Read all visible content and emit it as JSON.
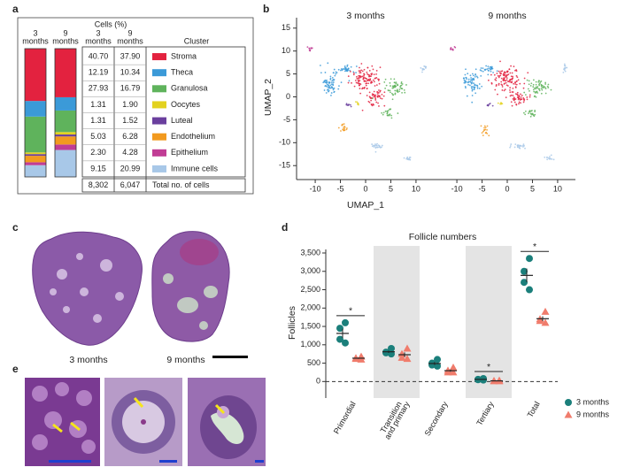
{
  "panels": {
    "a": {
      "label": "a",
      "cells_header": "Cells (%)",
      "bar_headers": [
        [
          "3",
          "months"
        ],
        [
          "9",
          "months"
        ]
      ],
      "table_headers": [
        [
          "3",
          "months"
        ],
        [
          "9",
          "months"
        ]
      ],
      "cluster_header": "Cluster",
      "rows": [
        {
          "cluster": "Stroma",
          "color": "#e3223f",
          "values": [
            40.7,
            37.9
          ],
          "value_labels": [
            "40.70",
            "37.90"
          ]
        },
        {
          "cluster": "Theca",
          "color": "#3b9ad8",
          "values": [
            12.19,
            10.34
          ],
          "value_labels": [
            "12.19",
            "10.34"
          ]
        },
        {
          "cluster": "Granulosa",
          "color": "#5fb35c",
          "values": [
            27.93,
            16.79
          ],
          "value_labels": [
            "27.93",
            "16.79"
          ]
        },
        {
          "cluster": "Oocytes",
          "color": "#e3d21f",
          "values": [
            1.31,
            1.9
          ],
          "value_labels": [
            "1.31",
            "1.90"
          ]
        },
        {
          "cluster": "Luteal",
          "color": "#6a3f9e",
          "values": [
            1.31,
            1.52
          ],
          "value_labels": [
            "1.31",
            "1.52"
          ]
        },
        {
          "cluster": "Endothelium",
          "color": "#f29a1f",
          "values": [
            5.03,
            6.28
          ],
          "value_labels": [
            "5.03",
            "6.28"
          ]
        },
        {
          "cluster": "Epithelium",
          "color": "#c13d95",
          "values": [
            2.3,
            4.28
          ],
          "value_labels": [
            "2.30",
            "4.28"
          ]
        },
        {
          "cluster": "Immune cells",
          "color": "#a8c8e8",
          "values": [
            9.15,
            20.99
          ],
          "value_labels": [
            "9.15",
            "20.99"
          ]
        }
      ],
      "total": {
        "label": "Total no. of cells",
        "values": [
          8302,
          6047
        ],
        "value_labels": [
          "8,302",
          "6,047"
        ]
      }
    },
    "b": {
      "label": "b",
      "titles": [
        "3 months",
        "9 months"
      ],
      "xlabel": "UMAP_1",
      "ylabel": "UMAP_2",
      "xlim": [
        -13,
        13
      ],
      "ylim": [
        -16.5,
        16.5
      ],
      "xticks": [
        -10,
        -5,
        0,
        5,
        10
      ],
      "yticks": [
        -15,
        -10,
        -5,
        0,
        5,
        10,
        15
      ]
    },
    "c": {
      "label": "c",
      "captions": [
        "3 months",
        "9 months"
      ]
    },
    "e": {
      "label": "e"
    }
  },
  "chart_data": {
    "type": "scatter",
    "panel_label": "d",
    "title": "Follicle numbers",
    "ylabel": "Follicles",
    "categories": [
      "Primordial",
      [
        "Transition",
        "and primary"
      ],
      "Secondary",
      "Tertiary",
      "Total"
    ],
    "ylim": [
      -450,
      3500
    ],
    "yticks": [
      0,
      500,
      {
        "value": 1000,
        "label": "1,000"
      },
      {
        "value": 1500,
        "label": "1,500"
      },
      {
        "value": 2000,
        "label": "2,000"
      },
      {
        "value": 2500,
        "label": "2,500"
      },
      {
        "value": 3000,
        "label": "3,000"
      },
      {
        "value": 3500,
        "label": "3,500"
      }
    ],
    "series": [
      {
        "name": "3 months",
        "color": "#1b7f7b",
        "marker": "circle",
        "values": [
          [
            1600,
            1450,
            1150,
            1050
          ],
          [
            900,
            800,
            780,
            750
          ],
          [
            600,
            500,
            450,
            420
          ],
          [
            80,
            60,
            50,
            40
          ],
          [
            3350,
            3000,
            2700,
            2500
          ]
        ],
        "mean": [
          1310,
          810,
          490,
          58,
          2890
        ],
        "sem": [
          125,
          32,
          40,
          9,
          185
        ]
      },
      {
        "name": "9 months",
        "color": "#f07c6c",
        "marker": "triangle",
        "values": [
          [
            680,
            640,
            620,
            600
          ],
          [
            900,
            750,
            650,
            620
          ],
          [
            380,
            300,
            250,
            250
          ],
          [
            30,
            20,
            10,
            10
          ],
          [
            1900,
            1700,
            1650,
            1600
          ]
        ],
        "mean": [
          635,
          730,
          295,
          18,
          1710
        ],
        "sem": [
          17,
          63,
          31,
          5,
          66
        ]
      }
    ],
    "significance": [
      "*",
      null,
      null,
      "*",
      "*"
    ],
    "shaded_categories": [
      1,
      3
    ],
    "zero_line": "dashed"
  }
}
